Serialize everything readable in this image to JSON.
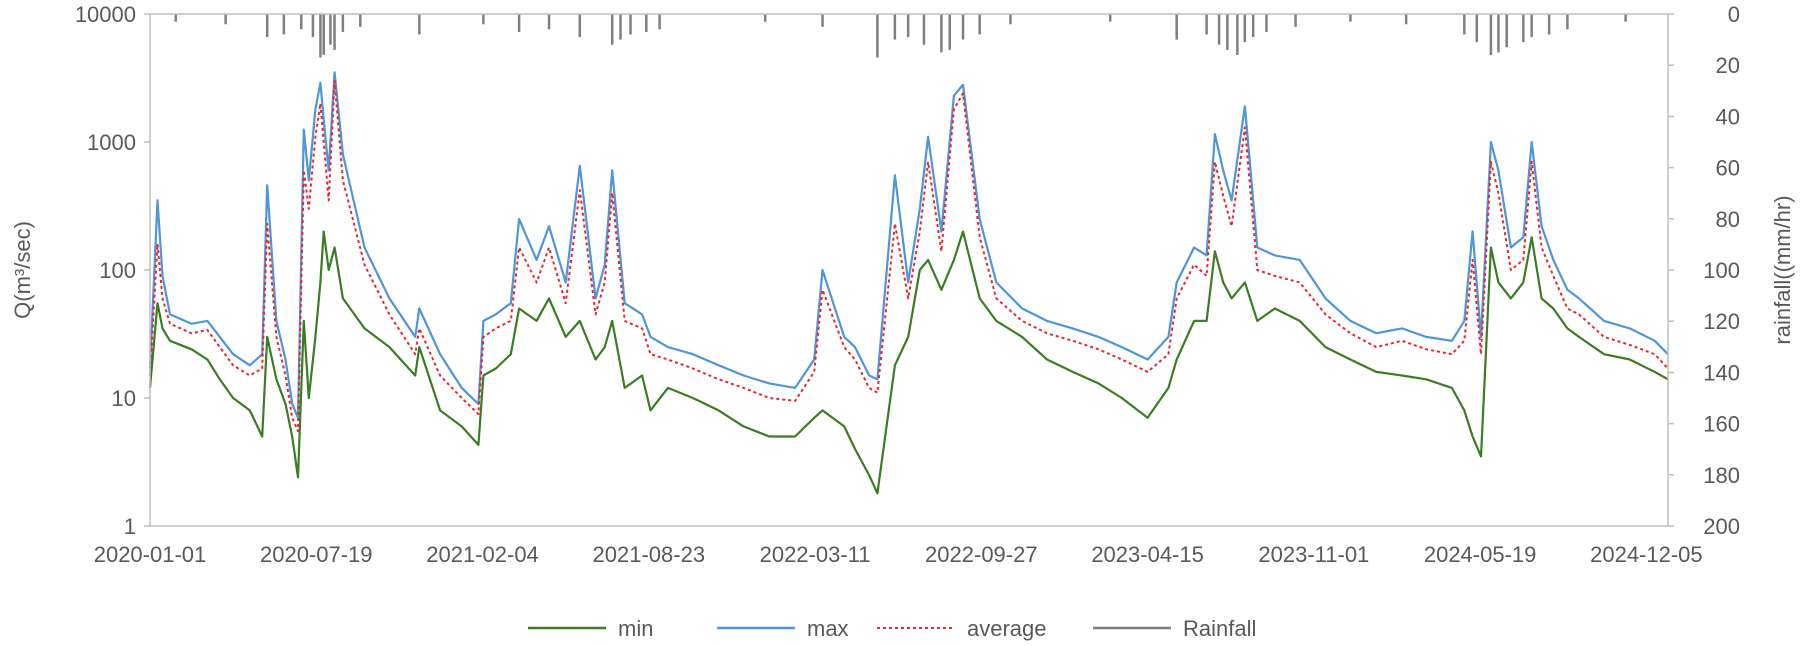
{
  "chart_data": {
    "type": "line",
    "ylabel_left": "Q(m³/sec)",
    "ylabel_right": "rainfall((mm/hr)",
    "y_left_scale": "log",
    "y_left_ticks": [
      "1",
      "10",
      "100",
      "1000",
      "10000"
    ],
    "y_left_range": [
      1,
      10000
    ],
    "y_right_inverted": true,
    "y_right_range": [
      0,
      200
    ],
    "y_right_ticks": [
      "0",
      "20",
      "40",
      "60",
      "80",
      "100",
      "120",
      "140",
      "160",
      "180",
      "200"
    ],
    "x_range": [
      "2020-01-01",
      "2024-12-31"
    ],
    "x_tick_labels": [
      "2020-01-01",
      "2020-07-19",
      "2021-02-04",
      "2021-08-23",
      "2022-03-11",
      "2022-09-27",
      "2023-04-15",
      "2023-11-01",
      "2024-05-19",
      "2024-12-05"
    ],
    "grid": false,
    "legend_position": "bottom",
    "legend": [
      "min",
      "max",
      "average",
      "Rainfall"
    ],
    "colors": {
      "min": "#3a7d22",
      "max": "#4e95d9",
      "average": "#e8262b",
      "Rainfall": "#7f7f7f",
      "axis": "#bfbfbf",
      "text": "#595959"
    },
    "series": [
      {
        "name": "max",
        "axis": "left",
        "x": [
          "2020-01-01",
          "2020-01-10",
          "2020-01-16",
          "2020-01-25",
          "2020-02-20",
          "2020-03-10",
          "2020-03-25",
          "2020-04-10",
          "2020-04-30",
          "2020-05-15",
          "2020-05-21",
          "2020-06-01",
          "2020-06-12",
          "2020-06-20",
          "2020-06-27",
          "2020-07-04",
          "2020-07-10",
          "2020-07-18",
          "2020-07-24",
          "2020-07-28",
          "2020-08-03",
          "2020-08-10",
          "2020-08-20",
          "2020-09-15",
          "2020-10-15",
          "2020-11-15",
          "2020-11-20",
          "2020-12-15",
          "2021-01-10",
          "2021-01-30",
          "2021-02-05",
          "2021-02-20",
          "2021-03-10",
          "2021-03-20",
          "2021-04-10",
          "2021-04-25",
          "2021-05-15",
          "2021-06-01",
          "2021-06-20",
          "2021-07-01",
          "2021-07-10",
          "2021-07-25",
          "2021-08-15",
          "2021-08-25",
          "2021-09-15",
          "2021-10-15",
          "2021-11-15",
          "2021-12-15",
          "2022-01-15",
          "2022-02-15",
          "2022-03-10",
          "2022-03-20",
          "2022-04-15",
          "2022-04-28",
          "2022-05-15",
          "2022-05-25",
          "2022-06-15",
          "2022-07-01",
          "2022-07-15",
          "2022-07-25",
          "2022-08-10",
          "2022-08-25",
          "2022-09-05",
          "2022-09-25",
          "2022-10-15",
          "2022-11-15",
          "2022-12-15",
          "2023-01-15",
          "2023-02-15",
          "2023-03-15",
          "2023-04-15",
          "2023-05-10",
          "2023-05-20",
          "2023-06-10",
          "2023-06-25",
          "2023-07-05",
          "2023-07-15",
          "2023-07-25",
          "2023-08-10",
          "2023-08-25",
          "2023-09-15",
          "2023-10-15",
          "2023-11-15",
          "2023-12-15",
          "2024-01-15",
          "2024-02-15",
          "2024-03-15",
          "2024-04-15",
          "2024-04-30",
          "2024-05-10",
          "2024-05-20",
          "2024-06-01",
          "2024-06-10",
          "2024-06-25",
          "2024-07-10",
          "2024-07-20",
          "2024-08-01",
          "2024-08-15",
          "2024-09-01",
          "2024-09-15",
          "2024-10-15",
          "2024-11-15",
          "2024-12-15",
          "2024-12-31"
        ],
        "y": [
          17,
          350,
          90,
          45,
          38,
          40,
          30,
          22,
          18,
          22,
          460,
          40,
          20,
          9,
          7,
          1250,
          500,
          1800,
          2900,
          1500,
          600,
          3500,
          800,
          150,
          60,
          30,
          50,
          22,
          12,
          9,
          40,
          45,
          55,
          250,
          120,
          220,
          80,
          650,
          60,
          110,
          600,
          55,
          45,
          30,
          25,
          22,
          18,
          15,
          13,
          12,
          20,
          100,
          30,
          25,
          15,
          14,
          550,
          80,
          300,
          1100,
          200,
          2300,
          2800,
          250,
          80,
          50,
          40,
          35,
          30,
          25,
          20,
          30,
          80,
          150,
          130,
          1150,
          600,
          350,
          1900,
          150,
          130,
          120,
          60,
          40,
          32,
          35,
          30,
          28,
          40,
          200,
          30,
          1000,
          600,
          150,
          180,
          1000,
          220,
          120,
          70,
          60,
          40,
          35,
          28,
          22
        ]
      },
      {
        "name": "average",
        "axis": "left",
        "x": [
          "2020-01-01",
          "2020-01-10",
          "2020-01-16",
          "2020-01-25",
          "2020-02-20",
          "2020-03-10",
          "2020-03-25",
          "2020-04-10",
          "2020-04-30",
          "2020-05-15",
          "2020-05-21",
          "2020-06-01",
          "2020-06-12",
          "2020-06-20",
          "2020-06-27",
          "2020-07-04",
          "2020-07-10",
          "2020-07-18",
          "2020-07-24",
          "2020-07-28",
          "2020-08-03",
          "2020-08-10",
          "2020-08-20",
          "2020-09-15",
          "2020-10-15",
          "2020-11-15",
          "2020-11-20",
          "2020-12-15",
          "2021-01-10",
          "2021-01-30",
          "2021-02-05",
          "2021-02-20",
          "2021-03-10",
          "2021-03-20",
          "2021-04-10",
          "2021-04-25",
          "2021-05-15",
          "2021-06-01",
          "2021-06-20",
          "2021-07-01",
          "2021-07-10",
          "2021-07-25",
          "2021-08-15",
          "2021-08-25",
          "2021-09-15",
          "2021-10-15",
          "2021-11-15",
          "2021-12-15",
          "2022-01-15",
          "2022-02-15",
          "2022-03-10",
          "2022-03-20",
          "2022-04-15",
          "2022-04-28",
          "2022-05-15",
          "2022-05-25",
          "2022-06-15",
          "2022-07-01",
          "2022-07-15",
          "2022-07-25",
          "2022-08-10",
          "2022-08-25",
          "2022-09-05",
          "2022-09-25",
          "2022-10-15",
          "2022-11-15",
          "2022-12-15",
          "2023-01-15",
          "2023-02-15",
          "2023-03-15",
          "2023-04-15",
          "2023-05-10",
          "2023-05-20",
          "2023-06-10",
          "2023-06-25",
          "2023-07-05",
          "2023-07-15",
          "2023-07-25",
          "2023-08-10",
          "2023-08-25",
          "2023-09-15",
          "2023-10-15",
          "2023-11-15",
          "2023-12-15",
          "2024-01-15",
          "2024-02-15",
          "2024-03-15",
          "2024-04-15",
          "2024-04-30",
          "2024-05-10",
          "2024-05-20",
          "2024-06-01",
          "2024-06-10",
          "2024-06-25",
          "2024-07-10",
          "2024-07-20",
          "2024-08-01",
          "2024-08-15",
          "2024-09-01",
          "2024-09-15",
          "2024-10-15",
          "2024-11-15",
          "2024-12-15",
          "2024-12-31"
        ],
        "y": [
          15,
          160,
          60,
          38,
          32,
          34,
          25,
          18,
          15,
          17,
          230,
          30,
          15,
          7,
          5.5,
          600,
          300,
          1100,
          2000,
          1000,
          350,
          3000,
          500,
          110,
          45,
          22,
          35,
          15,
          10,
          7.5,
          30,
          35,
          40,
          150,
          80,
          150,
          55,
          420,
          45,
          80,
          400,
          40,
          35,
          22,
          20,
          17,
          14,
          12,
          10,
          9.5,
          16,
          70,
          25,
          20,
          12,
          11,
          230,
          60,
          200,
          700,
          140,
          1800,
          2400,
          180,
          60,
          40,
          32,
          28,
          24,
          20,
          16,
          22,
          60,
          110,
          90,
          700,
          380,
          220,
          1300,
          100,
          90,
          80,
          45,
          32,
          25,
          28,
          24,
          22,
          28,
          120,
          22,
          700,
          400,
          100,
          120,
          700,
          150,
          90,
          50,
          45,
          30,
          26,
          22,
          17
        ]
      },
      {
        "name": "min",
        "axis": "left",
        "x": [
          "2020-01-01",
          "2020-01-10",
          "2020-01-16",
          "2020-01-25",
          "2020-02-20",
          "2020-03-10",
          "2020-03-25",
          "2020-04-10",
          "2020-04-30",
          "2020-05-15",
          "2020-05-21",
          "2020-06-01",
          "2020-06-12",
          "2020-06-20",
          "2020-06-27",
          "2020-07-04",
          "2020-07-10",
          "2020-07-18",
          "2020-07-24",
          "2020-07-28",
          "2020-08-03",
          "2020-08-10",
          "2020-08-20",
          "2020-09-15",
          "2020-10-15",
          "2020-11-15",
          "2020-11-20",
          "2020-12-15",
          "2021-01-10",
          "2021-01-30",
          "2021-02-05",
          "2021-02-20",
          "2021-03-10",
          "2021-03-20",
          "2021-04-10",
          "2021-04-25",
          "2021-05-15",
          "2021-06-01",
          "2021-06-20",
          "2021-07-01",
          "2021-07-10",
          "2021-07-25",
          "2021-08-15",
          "2021-08-25",
          "2021-09-15",
          "2021-10-15",
          "2021-11-15",
          "2021-12-15",
          "2022-01-15",
          "2022-02-15",
          "2022-03-10",
          "2022-03-20",
          "2022-04-15",
          "2022-04-28",
          "2022-05-15",
          "2022-05-25",
          "2022-06-15",
          "2022-07-01",
          "2022-07-15",
          "2022-07-25",
          "2022-08-10",
          "2022-08-25",
          "2022-09-05",
          "2022-09-25",
          "2022-10-15",
          "2022-11-15",
          "2022-12-15",
          "2023-01-15",
          "2023-02-15",
          "2023-03-15",
          "2023-04-15",
          "2023-05-10",
          "2023-05-20",
          "2023-06-10",
          "2023-06-25",
          "2023-07-05",
          "2023-07-15",
          "2023-07-25",
          "2023-08-10",
          "2023-08-25",
          "2023-09-15",
          "2023-10-15",
          "2023-11-15",
          "2023-12-15",
          "2024-01-15",
          "2024-02-15",
          "2024-03-15",
          "2024-04-15",
          "2024-04-30",
          "2024-05-10",
          "2024-05-20",
          "2024-06-01",
          "2024-06-10",
          "2024-06-25",
          "2024-07-10",
          "2024-07-20",
          "2024-08-01",
          "2024-08-15",
          "2024-09-01",
          "2024-09-15",
          "2024-10-15",
          "2024-11-15",
          "2024-12-15",
          "2024-12-31"
        ],
        "y": [
          12,
          55,
          35,
          28,
          24,
          20,
          14,
          10,
          8,
          5,
          30,
          14,
          9,
          5,
          2.4,
          40,
          10,
          30,
          80,
          200,
          100,
          150,
          60,
          35,
          25,
          15,
          25,
          8,
          6,
          4.3,
          15,
          17,
          22,
          50,
          40,
          60,
          30,
          40,
          20,
          25,
          40,
          12,
          15,
          8,
          12,
          10,
          8,
          6,
          5,
          5,
          7,
          8,
          6,
          4,
          2.5,
          1.8,
          18,
          30,
          100,
          120,
          70,
          120,
          200,
          60,
          40,
          30,
          20,
          16,
          13,
          10,
          7,
          12,
          20,
          40,
          40,
          140,
          80,
          60,
          80,
          40,
          50,
          40,
          25,
          20,
          16,
          15,
          14,
          12,
          8,
          5,
          3.5,
          150,
          80,
          60,
          80,
          180,
          60,
          50,
          35,
          30,
          22,
          20,
          16,
          14
        ]
      },
      {
        "name": "Rainfall",
        "axis": "right",
        "type": "bar",
        "x": [
          "2020-02-01",
          "2020-04-01",
          "2020-05-21",
          "2020-06-10",
          "2020-07-01",
          "2020-07-15",
          "2020-07-24",
          "2020-07-28",
          "2020-08-05",
          "2020-08-10",
          "2020-08-20",
          "2020-09-10",
          "2020-11-20",
          "2021-02-05",
          "2021-03-20",
          "2021-04-25",
          "2021-06-01",
          "2021-07-10",
          "2021-07-20",
          "2021-08-01",
          "2021-08-20",
          "2021-09-05",
          "2022-01-10",
          "2022-03-20",
          "2022-05-25",
          "2022-06-15",
          "2022-07-01",
          "2022-07-20",
          "2022-08-10",
          "2022-08-20",
          "2022-09-05",
          "2022-09-25",
          "2022-11-01",
          "2023-03-01",
          "2023-05-20",
          "2023-06-25",
          "2023-07-10",
          "2023-07-20",
          "2023-08-01",
          "2023-08-10",
          "2023-08-20",
          "2023-09-05",
          "2023-10-10",
          "2023-12-15",
          "2024-02-20",
          "2024-04-30",
          "2024-05-15",
          "2024-06-01",
          "2024-06-10",
          "2024-06-20",
          "2024-07-10",
          "2024-07-20",
          "2024-08-10",
          "2024-09-01",
          "2024-11-10"
        ],
        "y": [
          3,
          4,
          9,
          8,
          6,
          9,
          17,
          16,
          12,
          14,
          7,
          5,
          8,
          4,
          7,
          6,
          9,
          12,
          10,
          8,
          7,
          6,
          3,
          5,
          17,
          10,
          9,
          12,
          15,
          14,
          10,
          8,
          4,
          3,
          10,
          8,
          12,
          14,
          16,
          11,
          9,
          7,
          5,
          3,
          4,
          8,
          11,
          16,
          15,
          13,
          11,
          9,
          8,
          6,
          3
        ]
      }
    ]
  }
}
